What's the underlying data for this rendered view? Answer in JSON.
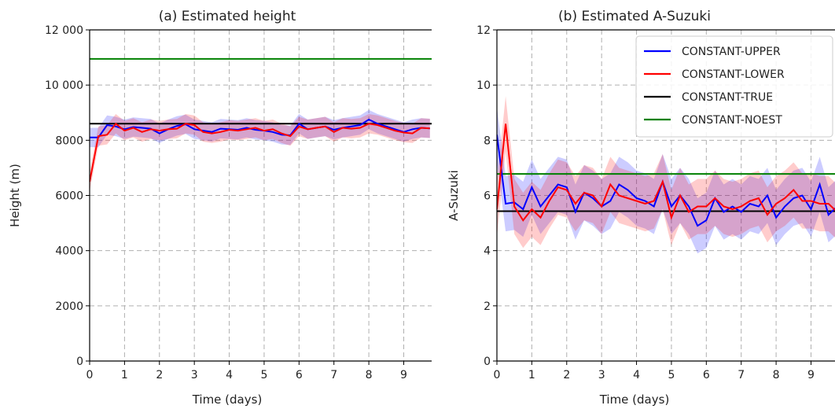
{
  "chart_data": [
    {
      "type": "line",
      "title": "(a) Estimated height",
      "xlabel": "Time (days)",
      "ylabel": "Height (m)",
      "xlim": [
        0,
        9.8
      ],
      "ylim": [
        0,
        12000
      ],
      "xticks": [
        "0",
        "1",
        "2",
        "3",
        "4",
        "5",
        "6",
        "7",
        "8",
        "9"
      ],
      "yticks": [
        {
          "value": 0,
          "label": "0"
        },
        {
          "value": 2000,
          "label": "2000"
        },
        {
          "value": 4000,
          "label": "4000"
        },
        {
          "value": 6000,
          "label": "6000"
        },
        {
          "value": 8000,
          "label": "8000"
        },
        {
          "value": 10000,
          "label": "10 000"
        },
        {
          "value": 12000,
          "label": "12 000"
        }
      ],
      "grid": true,
      "x": [
        0,
        0.25,
        0.5,
        0.75,
        1,
        1.25,
        1.5,
        1.75,
        2,
        2.25,
        2.5,
        2.75,
        3,
        3.25,
        3.5,
        3.75,
        4,
        4.25,
        4.5,
        4.75,
        5,
        5.25,
        5.5,
        5.75,
        6,
        6.25,
        6.5,
        6.75,
        7,
        7.25,
        7.5,
        7.75,
        8,
        8.25,
        8.5,
        8.75,
        9,
        9.25,
        9.5,
        9.75
      ],
      "series": [
        {
          "name": "CONSTANT-UPPER",
          "color": "#0000ff",
          "values": [
            8100,
            8100,
            8550,
            8500,
            8400,
            8480,
            8450,
            8420,
            8250,
            8400,
            8520,
            8580,
            8400,
            8350,
            8300,
            8420,
            8400,
            8380,
            8450,
            8380,
            8350,
            8300,
            8200,
            8180,
            8600,
            8400,
            8450,
            8500,
            8380,
            8450,
            8500,
            8550,
            8750,
            8600,
            8500,
            8400,
            8300,
            8400,
            8450,
            8430
          ],
          "band_width": 700
        },
        {
          "name": "CONSTANT-LOWER",
          "color": "#ff0000",
          "values": [
            6500,
            8150,
            8200,
            8600,
            8350,
            8450,
            8300,
            8400,
            8350,
            8400,
            8420,
            8600,
            8550,
            8300,
            8250,
            8300,
            8380,
            8350,
            8400,
            8450,
            8350,
            8400,
            8250,
            8150,
            8500,
            8400,
            8450,
            8500,
            8300,
            8450,
            8420,
            8450,
            8600,
            8550,
            8450,
            8350,
            8280,
            8250,
            8450,
            8430
          ],
          "band_width": 700
        },
        {
          "name": "CONSTANT-TRUE",
          "color": "#000000",
          "constant": 8600
        },
        {
          "name": "CONSTANT-NOEST",
          "color": "#008000",
          "constant": 10950
        }
      ]
    },
    {
      "type": "line",
      "title": "(b) Estimated A-Suzuki",
      "xlabel": "Time (days)",
      "ylabel": "A-Suzuki",
      "xlim": [
        0,
        9.8
      ],
      "ylim": [
        0,
        12
      ],
      "xticks": [
        "0",
        "1",
        "2",
        "3",
        "4",
        "5",
        "6",
        "7",
        "8",
        "9"
      ],
      "yticks": [
        {
          "value": 0,
          "label": "0"
        },
        {
          "value": 2,
          "label": "2"
        },
        {
          "value": 4,
          "label": "4"
        },
        {
          "value": 6,
          "label": "6"
        },
        {
          "value": 8,
          "label": "8"
        },
        {
          "value": 10,
          "label": "10"
        },
        {
          "value": 12,
          "label": "12"
        }
      ],
      "grid": true,
      "legend": "top-right",
      "x": [
        0,
        0.25,
        0.5,
        0.75,
        1,
        1.25,
        1.5,
        1.75,
        2,
        2.25,
        2.5,
        2.75,
        3,
        3.25,
        3.5,
        3.75,
        4,
        4.25,
        4.5,
        4.75,
        5,
        5.25,
        5.5,
        5.75,
        6,
        6.25,
        6.5,
        6.75,
        7,
        7.25,
        7.5,
        7.75,
        8,
        8.25,
        8.5,
        8.75,
        9,
        9.25,
        9.5,
        9.75
      ],
      "series": [
        {
          "name": "CONSTANT-UPPER",
          "color": "#0000ff",
          "values": [
            8.2,
            5.7,
            5.75,
            5.5,
            6.3,
            5.6,
            6.0,
            6.4,
            6.3,
            5.4,
            6.1,
            5.9,
            5.6,
            5.8,
            6.4,
            6.2,
            5.9,
            5.8,
            5.6,
            6.5,
            5.6,
            6.0,
            5.6,
            4.9,
            5.1,
            5.9,
            5.4,
            5.6,
            5.4,
            5.7,
            5.6,
            6.0,
            5.2,
            5.6,
            5.9,
            6.0,
            5.5,
            6.4,
            5.3,
            5.6
          ],
          "band_width": 2.0
        },
        {
          "name": "CONSTANT-LOWER",
          "color": "#ff0000",
          "values": [
            5.5,
            8.6,
            5.6,
            5.1,
            5.5,
            5.2,
            5.8,
            6.3,
            6.2,
            5.7,
            6.1,
            6.0,
            5.6,
            6.4,
            6.0,
            5.9,
            5.8,
            5.7,
            5.8,
            6.5,
            5.2,
            6.0,
            5.4,
            5.6,
            5.6,
            5.9,
            5.6,
            5.5,
            5.6,
            5.8,
            5.9,
            5.3,
            5.7,
            5.9,
            6.2,
            5.8,
            5.8,
            5.7,
            5.7,
            5.4
          ],
          "band_width": 2.0
        },
        {
          "name": "CONSTANT-TRUE",
          "color": "#000000",
          "constant": 5.43
        },
        {
          "name": "CONSTANT-NOEST",
          "color": "#008000",
          "constant": 6.78
        }
      ]
    }
  ]
}
